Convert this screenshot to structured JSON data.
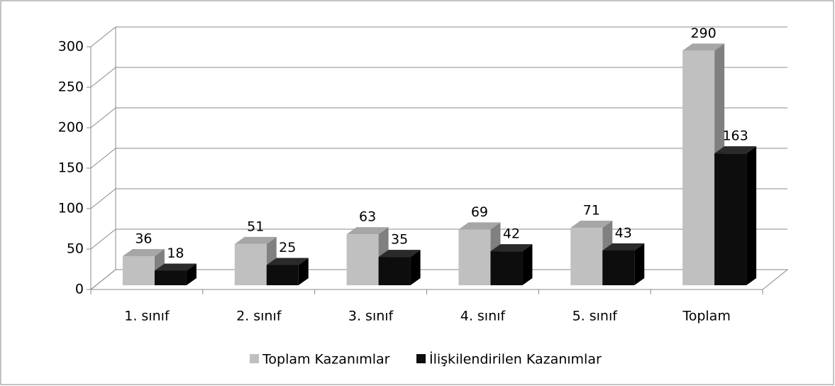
{
  "chart_data": {
    "type": "bar3d",
    "categories": [
      "1. sınıf",
      "2. sınıf",
      "3. sınıf",
      "4. sınıf",
      "5. sınıf",
      "Toplam"
    ],
    "series": [
      {
        "name": "Toplam Kazanımlar",
        "color": "#c0c0c0",
        "values": [
          36,
          51,
          63,
          69,
          71,
          290
        ]
      },
      {
        "name": "İlişkilendirilen Kazanımlar",
        "color": "#0d0d0d",
        "values": [
          18,
          25,
          35,
          42,
          43,
          163
        ]
      }
    ],
    "ylim": [
      0,
      300
    ],
    "yticks": [
      0,
      50,
      100,
      150,
      200,
      250,
      300
    ],
    "grid": true,
    "legend": "bottom"
  }
}
